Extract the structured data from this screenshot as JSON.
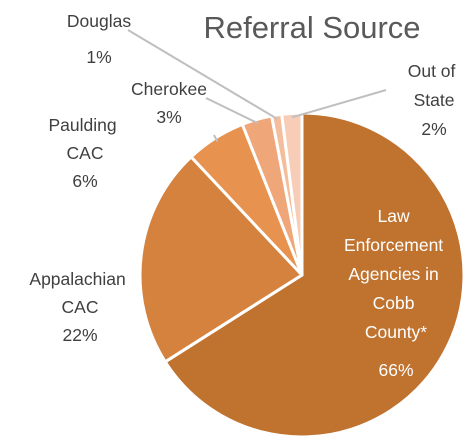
{
  "chart_data": {
    "type": "pie",
    "title": "Referral Source",
    "slices": [
      {
        "label": "Law Enforcement Agencies in Cobb County*",
        "value": 66,
        "pct_label": "66%",
        "color": "#C0722F"
      },
      {
        "label": "Appalachian CAC",
        "value": 22,
        "pct_label": "22%",
        "color": "#D4823E"
      },
      {
        "label": "Paulding CAC",
        "value": 6,
        "pct_label": "6%",
        "color": "#E8924F"
      },
      {
        "label": "Cherokee",
        "value": 3,
        "pct_label": "3%",
        "color": "#EFA77A"
      },
      {
        "label": "Douglas",
        "value": 1,
        "pct_label": "1%",
        "color": "#F4BE9D"
      },
      {
        "label": "Out of State",
        "value": 2,
        "pct_label": "2%",
        "color": "#F7CDB7"
      }
    ],
    "start_angle_deg": 0,
    "direction": "clockwise",
    "legend": "none"
  }
}
